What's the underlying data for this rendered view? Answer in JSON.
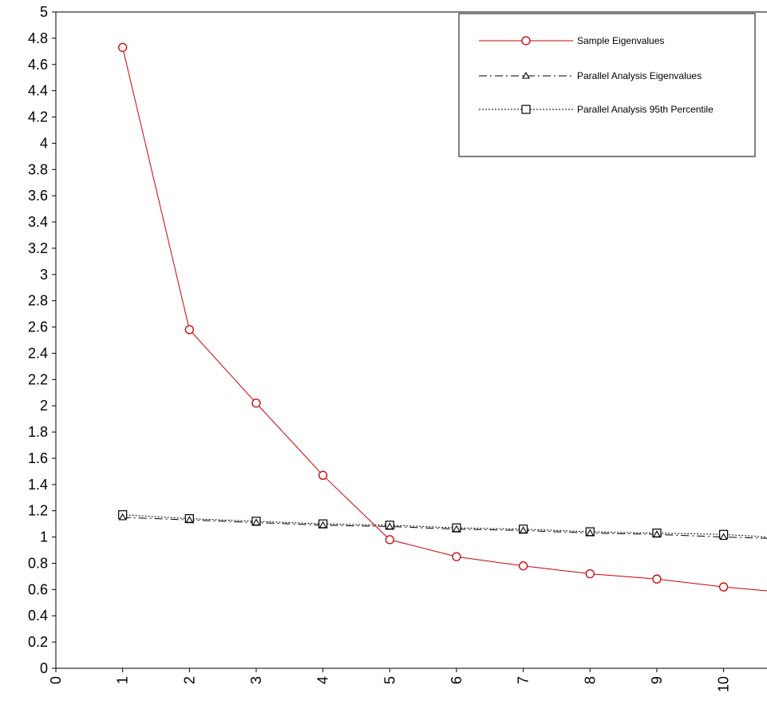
{
  "chart_data": {
    "type": "line",
    "title": "",
    "xlabel": "",
    "ylabel": "",
    "xlim": [
      0,
      10.65
    ],
    "ylim": [
      0,
      5
    ],
    "x_ticks": [
      "0",
      "1",
      "2",
      "3",
      "4",
      "5",
      "6",
      "7",
      "8",
      "9",
      "10"
    ],
    "y_ticks": [
      "0",
      "0.2",
      "0.4",
      "0.6",
      "0.8",
      "1",
      "1.2",
      "1.4",
      "1.6",
      "1.8",
      "2",
      "2.2",
      "2.4",
      "2.6",
      "2.8",
      "3",
      "3.2",
      "3.4",
      "3.6",
      "3.8",
      "4",
      "4.2",
      "4.4",
      "4.6",
      "4.8",
      "5"
    ],
    "grid": false,
    "legend_position": "top-right",
    "series": [
      {
        "name": "Sample Eigenvalues",
        "color": "#cc0000",
        "marker": "circle",
        "line_style": "solid",
        "x": [
          1,
          2,
          3,
          4,
          5,
          6,
          7,
          8,
          9,
          10,
          10.65
        ],
        "values": [
          4.73,
          2.58,
          2.02,
          1.47,
          0.98,
          0.85,
          0.78,
          0.72,
          0.68,
          0.62,
          0.59
        ]
      },
      {
        "name": "Parallel Analysis Eigenvalues",
        "color": "#000000",
        "marker": "triangle",
        "line_style": "dash-dot",
        "x": [
          1,
          2,
          3,
          4,
          5,
          6,
          7,
          8,
          9,
          10,
          10.65
        ],
        "values": [
          1.15,
          1.13,
          1.11,
          1.09,
          1.08,
          1.06,
          1.05,
          1.03,
          1.02,
          1.0,
          0.99
        ]
      },
      {
        "name": "Parallel Analysis 95th Percentile",
        "color": "#000000",
        "marker": "square",
        "line_style": "dotted",
        "x": [
          1,
          2,
          3,
          4,
          5,
          6,
          7,
          8,
          9,
          10,
          10.65
        ],
        "values": [
          1.17,
          1.14,
          1.12,
          1.1,
          1.09,
          1.07,
          1.06,
          1.04,
          1.03,
          1.02,
          1.0
        ]
      }
    ]
  }
}
